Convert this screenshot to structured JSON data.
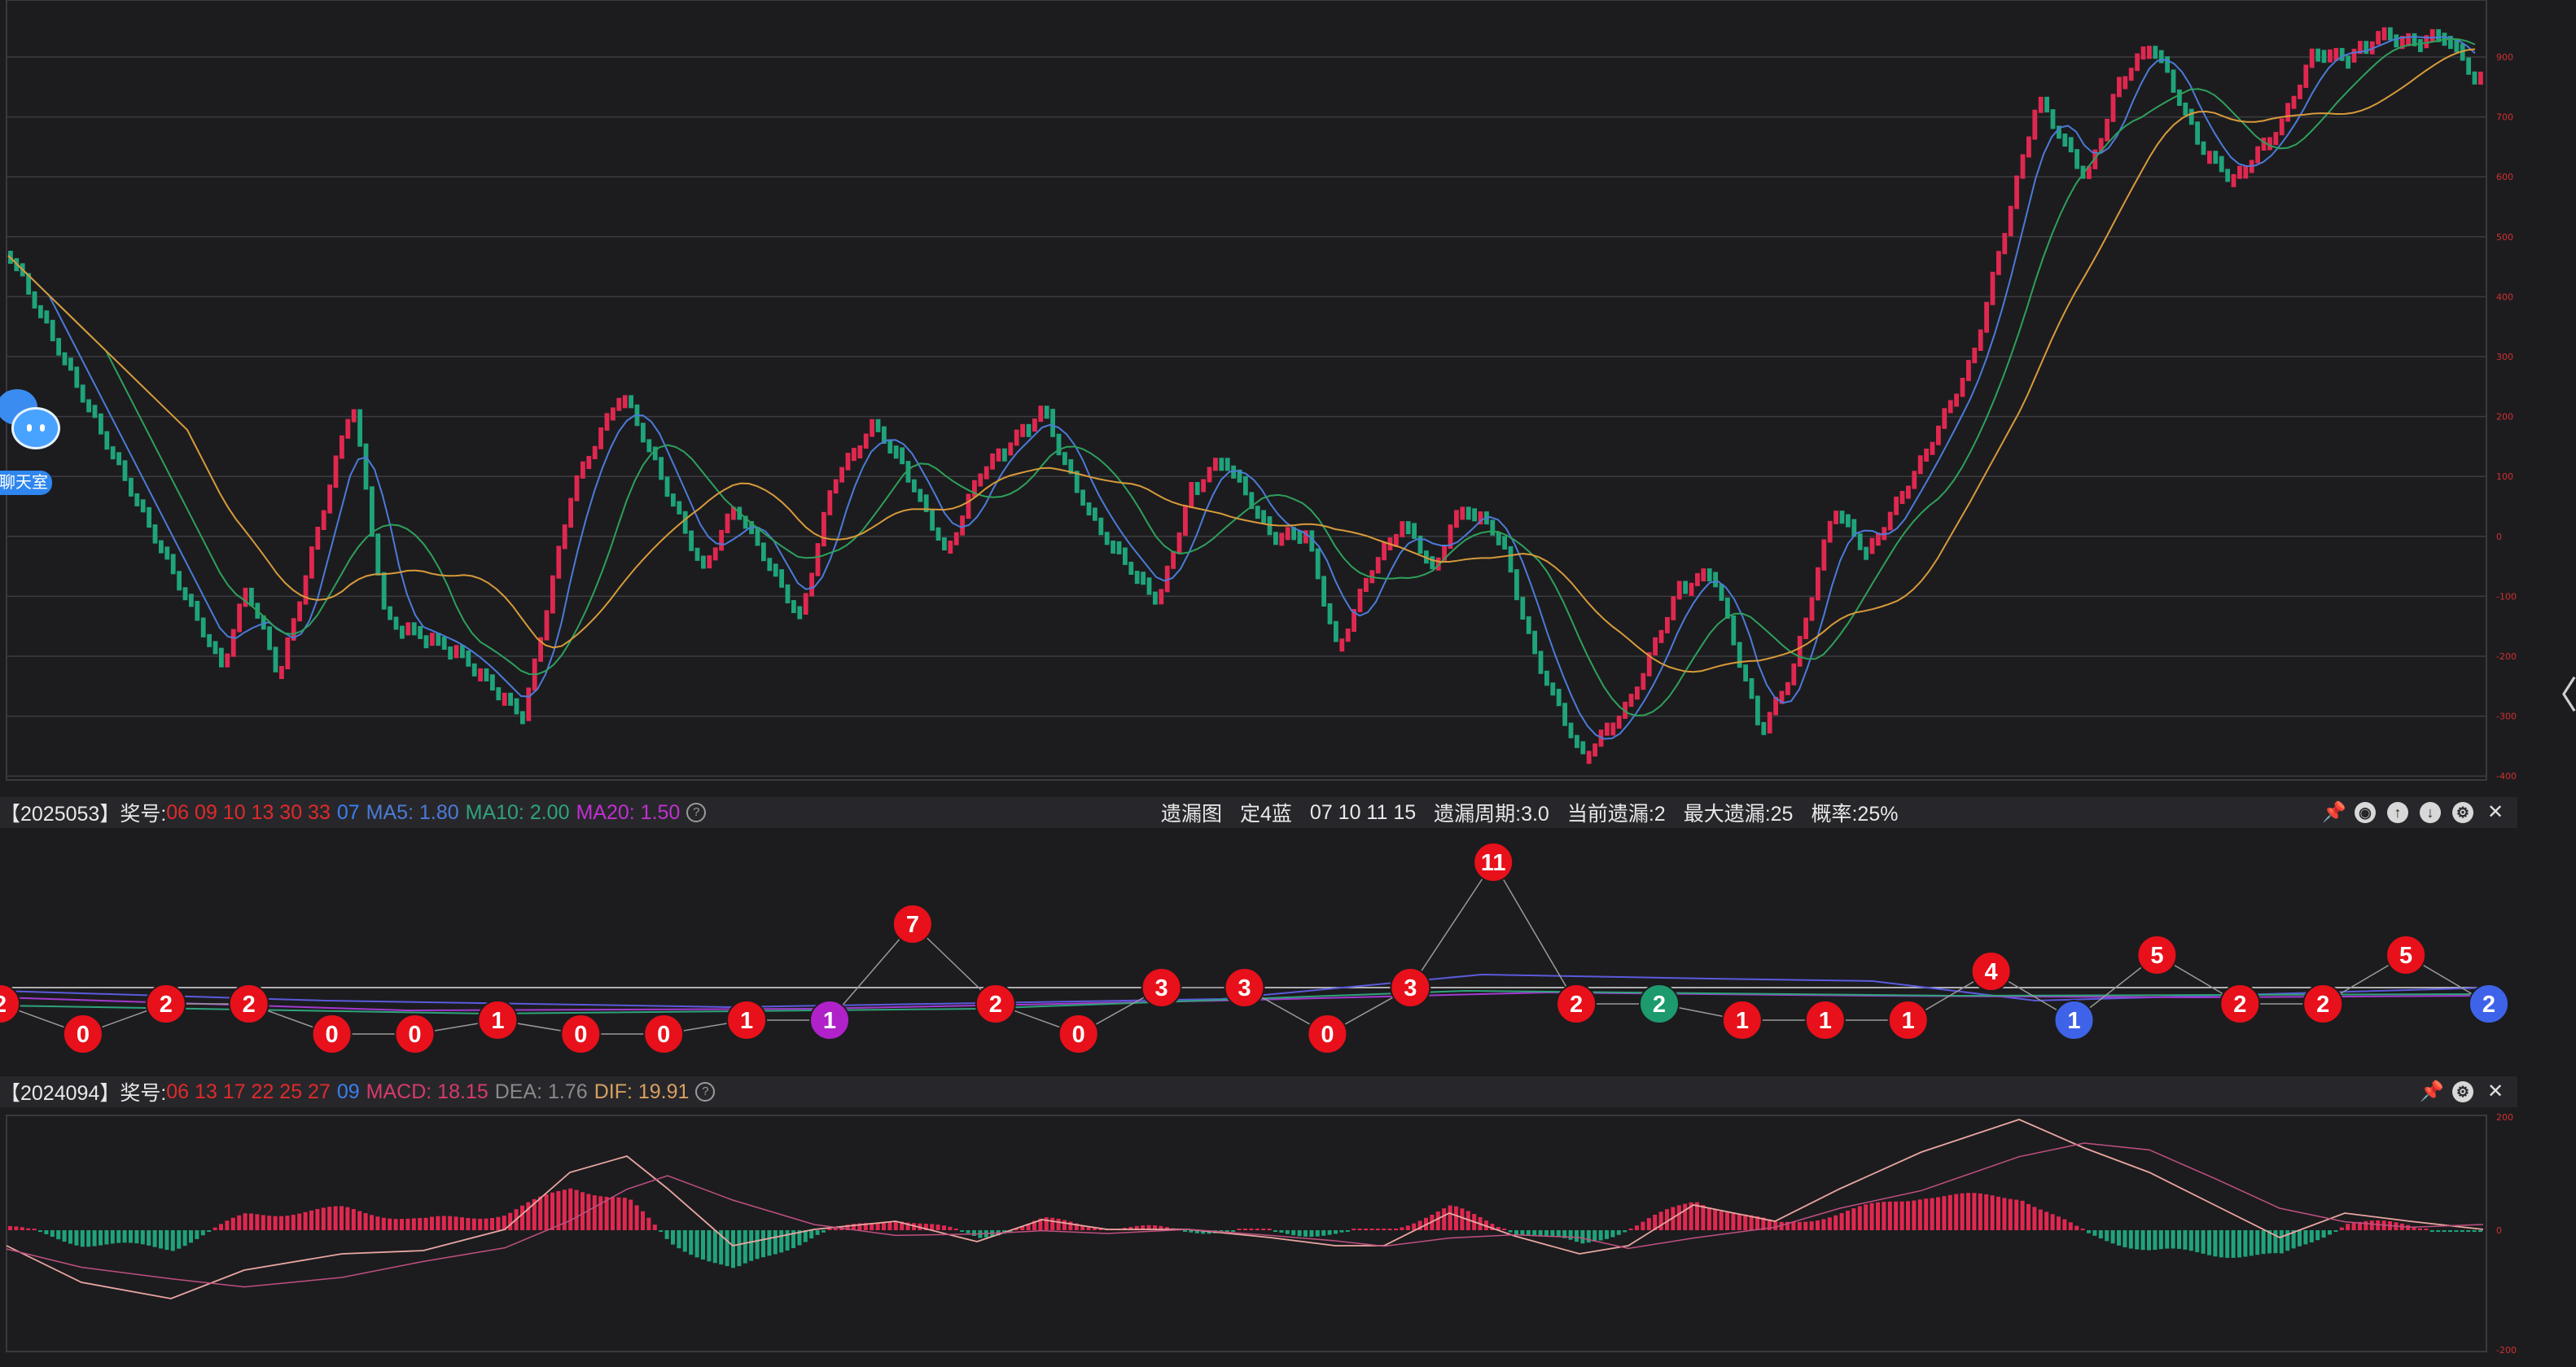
{
  "main_chart": {
    "y_ticks": [
      "900",
      "700",
      "600",
      "500",
      "400",
      "300",
      "200",
      "100",
      "0",
      "-100",
      "-200",
      "-300",
      "-400"
    ],
    "ma_labels": [
      "MA5",
      "MA10",
      "MA20"
    ]
  },
  "chat_widget": {
    "label": "聊天室"
  },
  "indicator_bar": {
    "issue": "【2025053】奖号:",
    "red_numbers": "06 09 10 13 30 33",
    "blue_number": "07",
    "ma5_label": "MA5: 1.80",
    "ma10_label": "MA10: 2.00",
    "ma20_label": "MA20: 1.50",
    "help_icon": "?"
  },
  "omission_info": {
    "chart_name": "遗漏图",
    "fixed": "定4蓝",
    "numbers": "07 10 11 15",
    "period": "遗漏周期:3.0",
    "current": "当前遗漏:2",
    "max": "最大遗漏:25",
    "probability": "概率:25%"
  },
  "toolbar_icons": [
    "pin-icon",
    "eye-icon",
    "up-icon",
    "down-icon",
    "settings-icon",
    "close-icon"
  ],
  "omission_nodes": [
    {
      "v": "2",
      "c": "red"
    },
    {
      "v": "0",
      "c": "red"
    },
    {
      "v": "2",
      "c": "red"
    },
    {
      "v": "2",
      "c": "red"
    },
    {
      "v": "0",
      "c": "red"
    },
    {
      "v": "0",
      "c": "red"
    },
    {
      "v": "1",
      "c": "red"
    },
    {
      "v": "0",
      "c": "red"
    },
    {
      "v": "0",
      "c": "red"
    },
    {
      "v": "1",
      "c": "red"
    },
    {
      "v": "1",
      "c": "purple"
    },
    {
      "v": "7",
      "c": "red"
    },
    {
      "v": "2",
      "c": "red"
    },
    {
      "v": "0",
      "c": "red"
    },
    {
      "v": "3",
      "c": "red"
    },
    {
      "v": "3",
      "c": "red"
    },
    {
      "v": "0",
      "c": "red"
    },
    {
      "v": "3",
      "c": "red"
    },
    {
      "v": "11",
      "c": "red"
    },
    {
      "v": "2",
      "c": "red"
    },
    {
      "v": "2",
      "c": "green"
    },
    {
      "v": "1",
      "c": "red"
    },
    {
      "v": "1",
      "c": "red"
    },
    {
      "v": "1",
      "c": "red"
    },
    {
      "v": "4",
      "c": "red"
    },
    {
      "v": "1",
      "c": "blue"
    },
    {
      "v": "5",
      "c": "red"
    },
    {
      "v": "2",
      "c": "red"
    },
    {
      "v": "2",
      "c": "red"
    },
    {
      "v": "5",
      "c": "red"
    },
    {
      "v": "2",
      "c": "blue"
    }
  ],
  "macd_bar": {
    "issue": "【2024094】奖号:",
    "red_numbers": "06 13 17 22 25 27",
    "blue_number": "09",
    "macd_label": "MACD: 18.15",
    "dea_label": "DEA: 1.76",
    "dif_label": "DIF: 19.91",
    "help_icon": "?"
  },
  "macd_chart": {
    "y_ticks": [
      "200",
      "0",
      "-200"
    ]
  },
  "colors": {
    "up": "#e0284f",
    "down": "#1fa37b",
    "ma5": "#4b7bd8",
    "ma10": "#2ea05a",
    "ma20": "#d89a3a",
    "node_red": "#e8101a",
    "node_purple": "#b021c9",
    "node_green": "#1d9a6e",
    "node_blue": "#3e63e8"
  }
}
